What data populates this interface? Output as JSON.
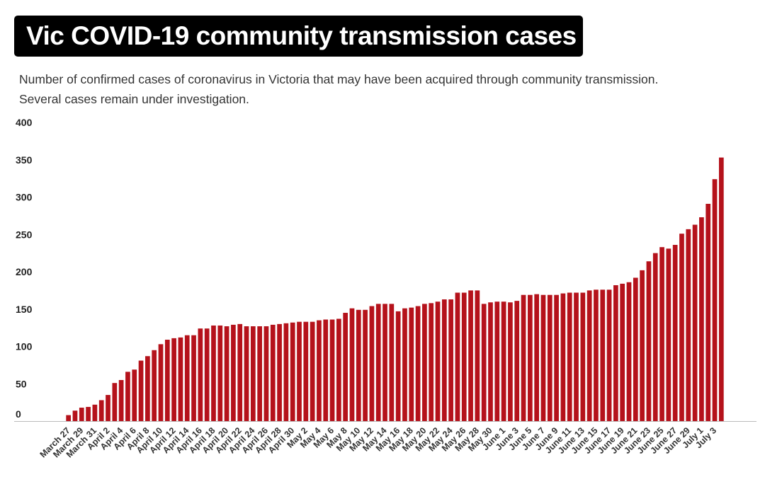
{
  "title": "Vic COVID-19 community transmission cases",
  "subtitle_lines": [
    "Number of confirmed cases of coronavirus in Victoria that may have been acquired through community transmission.",
    "Several cases remain under investigation."
  ],
  "colors": {
    "bar": "#b5121b",
    "title_bg": "#000000"
  },
  "chart_data": {
    "type": "bar",
    "ylim": [
      0,
      400
    ],
    "yticks": [
      0,
      50,
      100,
      150,
      200,
      250,
      300,
      350,
      400
    ],
    "xtick_labels": [
      "March 27",
      "March 29",
      "March 31",
      "April 2",
      "April 4",
      "April 6",
      "April 8",
      "April 10",
      "April 12",
      "April 14",
      "April 16",
      "April 18",
      "April 20",
      "April 22",
      "April 24",
      "April 26",
      "April 28",
      "April 30",
      "May 2",
      "May 4",
      "May 6",
      "May 8",
      "May 10",
      "May 12",
      "May 14",
      "May 16",
      "May 18",
      "May 20",
      "May 22",
      "May 24",
      "May 26",
      "May 28",
      "May 30",
      "June 1",
      "June 3",
      "June 5",
      "June 7",
      "June 9",
      "June 11",
      "June 13",
      "June 15",
      "June 17",
      "June 19",
      "June 21",
      "June 23",
      "June 25",
      "June 27",
      "June 29",
      "July 1",
      "July 3"
    ],
    "values": [
      8,
      14,
      18,
      19,
      22,
      28,
      35,
      51,
      55,
      66,
      69,
      81,
      87,
      95,
      103,
      109,
      111,
      112,
      115,
      115,
      124,
      124,
      128,
      128,
      127,
      129,
      130,
      127,
      127,
      127,
      127,
      129,
      130,
      131,
      132,
      133,
      133,
      133,
      135,
      136,
      136,
      137,
      145,
      151,
      149,
      149,
      154,
      157,
      157,
      157,
      147,
      151,
      152,
      154,
      157,
      158,
      160,
      163,
      163,
      172,
      172,
      175,
      175,
      157,
      159,
      160,
      160,
      159,
      161,
      169,
      169,
      170,
      169,
      169,
      169,
      171,
      172,
      172,
      172,
      175,
      176,
      176,
      176,
      182,
      184,
      186,
      192,
      202,
      214,
      225,
      233,
      231,
      236,
      251,
      257,
      263,
      273,
      291,
      324,
      353
    ]
  }
}
